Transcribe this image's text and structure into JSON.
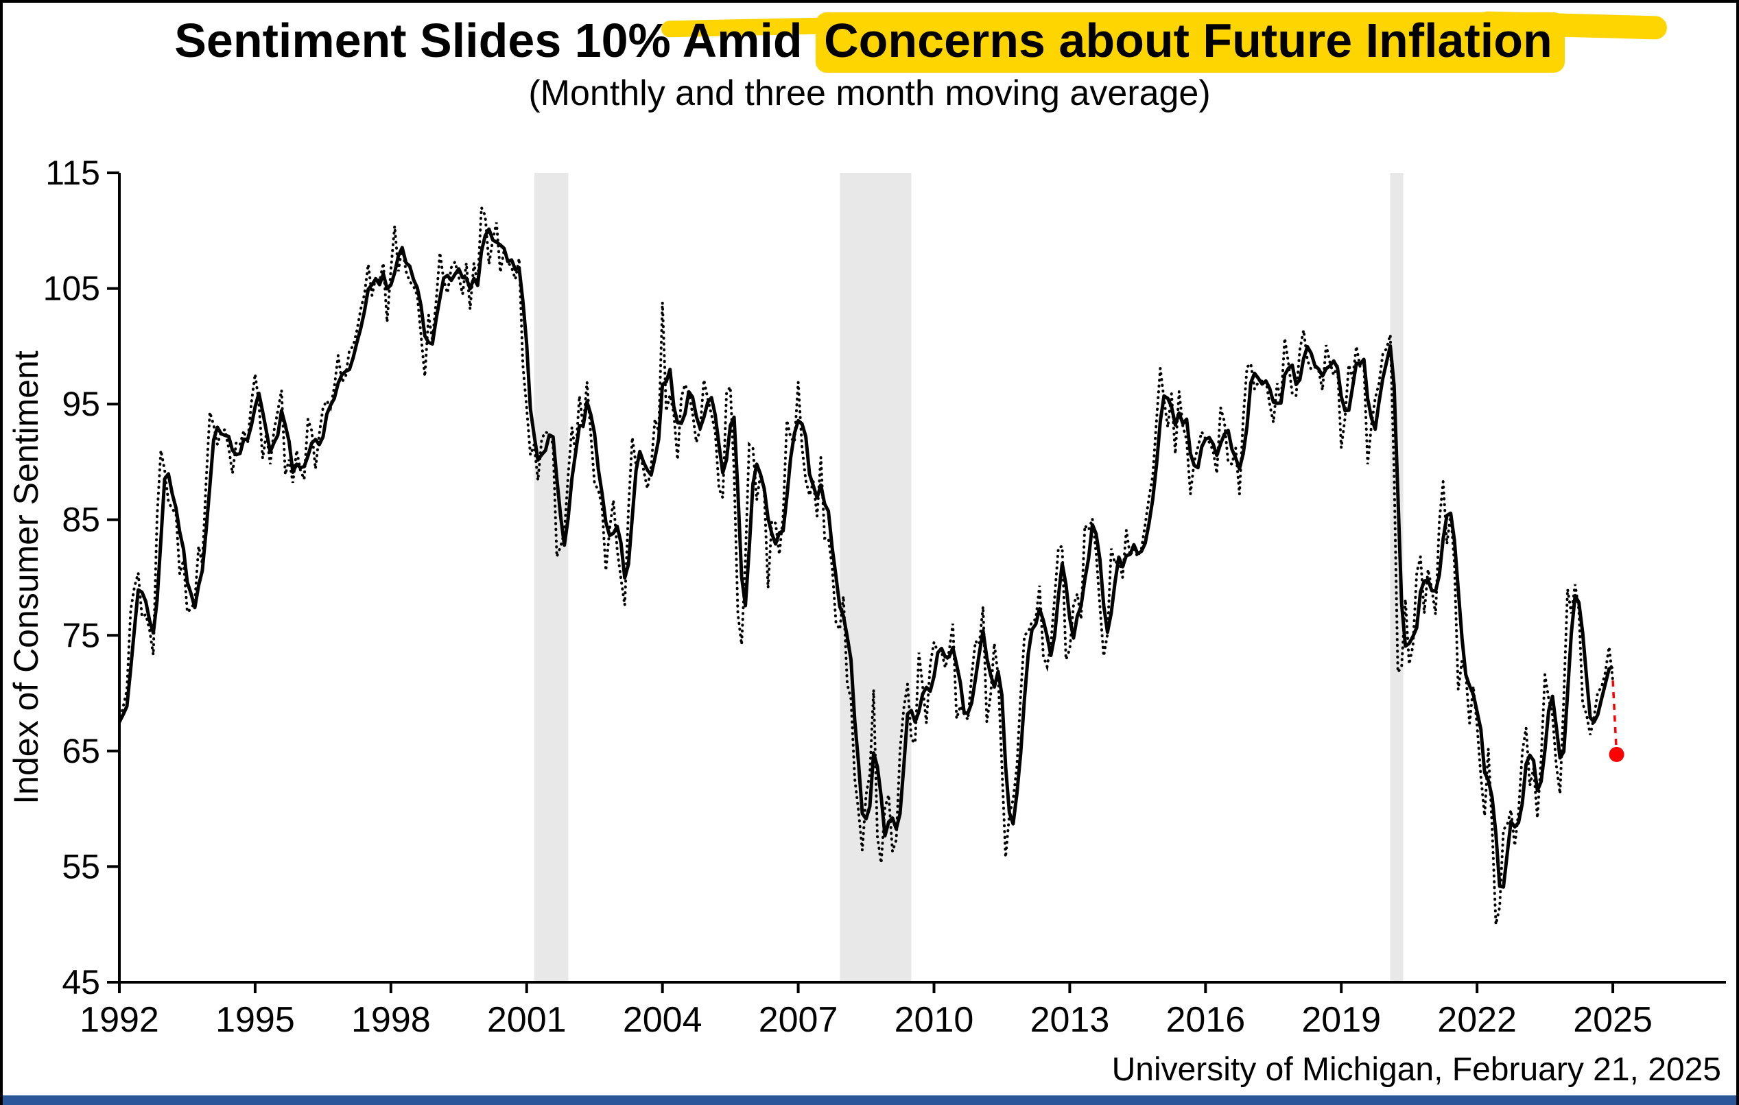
{
  "frame": {
    "border_color": "#000000",
    "bottom_bar_color": "#2B579A"
  },
  "header": {
    "title_plain": "Sentiment Slides 10% Amid ",
    "title_highlight": "Concerns about Future Inflation",
    "subtitle": "(Monthly and three month moving average)",
    "highlight_color": "#FFD500"
  },
  "source": "University of Michigan, February 21, 2025",
  "chart_data": {
    "type": "line",
    "title": "Sentiment Slides 10% Amid Concerns about Future Inflation",
    "subtitle": "(Monthly and three month moving average)",
    "xlabel": "",
    "ylabel": "Index of Consumer Sentiment",
    "ylim": [
      45,
      115
    ],
    "xlim": [
      1992,
      2027.5
    ],
    "y_ticks": [
      115,
      105,
      95,
      85,
      75,
      65,
      55,
      45
    ],
    "x_ticks": [
      1992,
      1995,
      1998,
      2001,
      2004,
      2007,
      2010,
      2013,
      2016,
      2019,
      2022,
      2025
    ],
    "grid": false,
    "legend_position": "none",
    "line_color": "#000000",
    "band_color": "#E8E8E8",
    "series": [
      {
        "name": "Monthly",
        "style": "dotted",
        "color": "#000000"
      },
      {
        "name": "Three month moving average",
        "style": "solid",
        "color": "#000000",
        "derived": "3-month moving average of Monthly"
      }
    ],
    "recession_bands": [
      {
        "start": 2001.17,
        "end": 2001.92
      },
      {
        "start": 2007.92,
        "end": 2009.5
      },
      {
        "start": 2020.08,
        "end": 2020.37
      }
    ],
    "monthly_values_by_year": {
      "1992": [
        67.5,
        68.8,
        70.3,
        77.2,
        79.2,
        80.4,
        76.6,
        76.8,
        75.5,
        73.3,
        85.3,
        91.0
      ],
      "1993": [
        89.3,
        86.6,
        85.9,
        85.6,
        80.3,
        81.5,
        77.0,
        77.3,
        77.9,
        82.7,
        81.2,
        88.2
      ],
      "1994": [
        94.3,
        93.2,
        91.5,
        92.6,
        92.8,
        91.2,
        89.0,
        91.7,
        91.5,
        92.7,
        91.6,
        95.1
      ],
      "1995": [
        97.6,
        95.1,
        90.3,
        92.5,
        89.8,
        92.7,
        94.4,
        96.2,
        88.9,
        90.2,
        88.2,
        91.0
      ],
      "1996": [
        89.3,
        88.5,
        93.7,
        92.7,
        89.4,
        92.4,
        94.7,
        95.3,
        94.7,
        96.5,
        99.2,
        96.9
      ],
      "1997": [
        97.4,
        99.7,
        100.0,
        101.4,
        103.2,
        104.5,
        107.1,
        104.4,
        106.0,
        105.6,
        107.2,
        102.1
      ],
      "1998": [
        106.6,
        110.4,
        106.5,
        108.7,
        106.5,
        105.6,
        105.2,
        104.4,
        100.9,
        97.4,
        102.7,
        100.5
      ],
      "1999": [
        103.9,
        108.1,
        105.7,
        104.6,
        106.8,
        107.3,
        106.0,
        104.5,
        107.2,
        103.2,
        107.2,
        105.4
      ],
      "2000": [
        112.0,
        111.3,
        107.1,
        109.2,
        110.7,
        106.4,
        108.3,
        107.3,
        106.8,
        105.8,
        107.6,
        98.4
      ],
      "2001": [
        94.7,
        90.6,
        91.5,
        88.4,
        92.0,
        92.6,
        92.4,
        91.5,
        81.8,
        82.7,
        83.9,
        88.8
      ],
      "2002": [
        93.0,
        90.7,
        95.7,
        93.0,
        96.9,
        92.4,
        88.1,
        87.6,
        86.1,
        80.6,
        84.2,
        86.7
      ],
      "2003": [
        82.4,
        79.9,
        77.6,
        86.0,
        92.1,
        89.7,
        90.9,
        89.3,
        87.7,
        89.6,
        93.7,
        92.6
      ],
      "2004": [
        103.8,
        94.4,
        95.8,
        94.2,
        90.2,
        95.6,
        96.7,
        95.9,
        94.2,
        91.7,
        92.8,
        97.1
      ],
      "2005": [
        95.5,
        94.1,
        92.6,
        87.7,
        86.9,
        96.0,
        96.5,
        89.1,
        76.9,
        74.2,
        81.6,
        91.5
      ],
      "2006": [
        91.2,
        86.7,
        88.9,
        87.4,
        79.1,
        84.9,
        84.7,
        82.0,
        85.4,
        93.6,
        92.1,
        91.7
      ],
      "2007": [
        96.9,
        91.3,
        88.4,
        87.1,
        88.3,
        85.3,
        90.4,
        83.4,
        83.4,
        80.9,
        76.1,
        75.5
      ],
      "2008": [
        78.4,
        70.8,
        69.5,
        62.6,
        59.8,
        56.4,
        61.2,
        63.0,
        70.3,
        57.6,
        55.3,
        60.1
      ],
      "2009": [
        61.2,
        56.3,
        57.3,
        65.1,
        68.7,
        70.8,
        66.0,
        65.7,
        73.5,
        70.6,
        67.4,
        72.5
      ],
      "2010": [
        74.4,
        73.6,
        73.6,
        72.2,
        73.6,
        76.0,
        67.8,
        68.9,
        68.2,
        67.7,
        71.6,
        74.5
      ],
      "2011": [
        74.2,
        77.5,
        67.5,
        69.8,
        74.3,
        71.5,
        63.7,
        55.8,
        59.5,
        60.8,
        63.7,
        69.9
      ],
      "2012": [
        75.0,
        75.3,
        76.2,
        76.4,
        79.3,
        73.2,
        72.3,
        74.3,
        78.3,
        82.6,
        82.7,
        72.9
      ],
      "2013": [
        73.8,
        77.6,
        78.6,
        76.4,
        84.5,
        84.1,
        85.1,
        82.1,
        77.5,
        73.2,
        75.1,
        82.5
      ],
      "2014": [
        81.2,
        81.6,
        80.0,
        84.1,
        81.9,
        82.5,
        81.8,
        82.5,
        84.6,
        86.9,
        88.8,
        93.6
      ],
      "2015": [
        98.1,
        95.4,
        93.0,
        95.9,
        90.7,
        96.1,
        93.1,
        91.9,
        87.2,
        90.0,
        91.3,
        92.6
      ],
      "2016": [
        92.0,
        91.7,
        91.0,
        89.0,
        94.7,
        93.5,
        90.0,
        89.8,
        91.2,
        87.2,
        93.8,
        98.2
      ],
      "2017": [
        98.5,
        96.3,
        96.9,
        97.0,
        97.1,
        95.0,
        93.4,
        96.8,
        95.1,
        100.7,
        98.5,
        95.9
      ],
      "2018": [
        95.7,
        99.7,
        101.4,
        98.8,
        98.0,
        98.2,
        97.9,
        96.2,
        100.1,
        98.6,
        97.5,
        98.3
      ],
      "2019": [
        91.2,
        93.8,
        98.4,
        97.2,
        100.0,
        98.2,
        98.4,
        89.8,
        93.2,
        95.5,
        96.8,
        99.3
      ],
      "2020": [
        99.8,
        101.0,
        89.1,
        71.8,
        72.3,
        78.1,
        72.5,
        74.1,
        80.4,
        81.8,
        76.9,
        80.7
      ],
      "2021": [
        79.0,
        76.8,
        84.9,
        88.3,
        82.9,
        85.5,
        81.2,
        70.3,
        72.8,
        71.7,
        67.4,
        70.6
      ],
      "2022": [
        67.2,
        62.8,
        59.4,
        65.2,
        58.4,
        50.0,
        51.5,
        58.2,
        58.6,
        59.9,
        56.8,
        59.7
      ],
      "2023": [
        64.9,
        67.0,
        62.0,
        63.5,
        59.2,
        64.4,
        71.6,
        69.5,
        68.1,
        63.8,
        61.3,
        69.7
      ],
      "2024": [
        79.0,
        76.9,
        79.4,
        77.2,
        69.1,
        68.2,
        66.4,
        67.9,
        70.1,
        70.5,
        71.8,
        74.0
      ],
      "2025": [
        71.1,
        64.7
      ]
    },
    "latest_point": {
      "time_label": "February 2025",
      "value": 64.7,
      "color": "#FF0000",
      "connector_style": "dashed"
    }
  }
}
